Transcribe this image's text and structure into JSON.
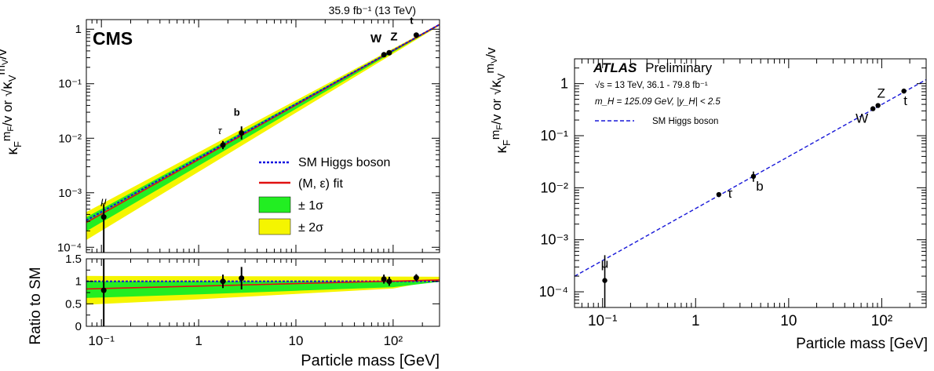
{
  "chart_data": [
    {
      "type": "scatter",
      "experiment": "CMS",
      "lumi": "35.9 fb⁻¹ (13 TeV)",
      "xlabel": "Particle mass [GeV]",
      "ylabel_main": "κ_F m_F/v or √κ_V m_V/v",
      "ylabel_ratio": "Ratio to SM",
      "xscale": "log",
      "yscale": "log",
      "xlim": [
        0.07,
        300
      ],
      "ylim": [
        8e-05,
        1.5
      ],
      "ratio_ylim": [
        0,
        1.5
      ],
      "xtick_labels": [
        "10⁻¹",
        "1",
        "10",
        "10²"
      ],
      "ytick_labels": [
        "10⁻⁴",
        "10⁻³",
        "10⁻²",
        "10⁻¹",
        "1"
      ],
      "ratio_ytick_labels": [
        "0",
        "0.5",
        "1",
        "1.5"
      ],
      "points": [
        {
          "label": "μ",
          "mass": 0.1057,
          "y": 0.00036,
          "err_lo": 0.00036,
          "err_hi": 0.00025,
          "ratio": 0.8,
          "ratio_err": 0.8
        },
        {
          "label": "τ",
          "mass": 1.777,
          "y": 0.0075,
          "err_lo": 0.0012,
          "err_hi": 0.0014,
          "ratio": 1.0,
          "ratio_err": 0.15
        },
        {
          "label": "b",
          "mass": 2.76,
          "y": 0.0125,
          "err_lo": 0.003,
          "err_hi": 0.004,
          "ratio": 1.07,
          "ratio_err": 0.25
        },
        {
          "label": "W",
          "mass": 80.4,
          "y": 0.34,
          "err_lo": 0.03,
          "err_hi": 0.03,
          "ratio": 1.05,
          "ratio_err": 0.1
        },
        {
          "label": "Z",
          "mass": 91.2,
          "y": 0.37,
          "err_lo": 0.03,
          "err_hi": 0.03,
          "ratio": 1.0,
          "ratio_err": 0.1
        },
        {
          "label": "t",
          "mass": 173.0,
          "y": 0.78,
          "err_lo": 0.07,
          "err_hi": 0.07,
          "ratio": 1.08,
          "ratio_err": 0.08
        }
      ],
      "legend": [
        {
          "label": "SM Higgs boson",
          "style": "dotted-line",
          "color": "#1010e0"
        },
        {
          "label": "(M, ε) fit",
          "style": "line",
          "color": "#e01010"
        },
        {
          "label": "± 1σ",
          "style": "box",
          "color": "#22ee22"
        },
        {
          "label": "± 2σ",
          "style": "box",
          "color": "#f5f500"
        }
      ],
      "legend_position": "lower-right",
      "grid": false
    },
    {
      "type": "scatter",
      "experiment": "ATLAS",
      "experiment_status": "Preliminary",
      "energy_text": "√s = 13 TeV, 36.1 - 79.8 fb⁻¹",
      "mass_text": "m_H = 125.09 GeV, |y_H| < 2.5",
      "xlabel": "Particle mass [GeV]",
      "ylabel": "κ_F m_F/v or √κ_V m_V/v",
      "xscale": "log",
      "yscale": "log",
      "xlim": [
        0.05,
        300
      ],
      "ylim": [
        5e-05,
        3
      ],
      "xtick_labels": [
        "10⁻¹",
        "1",
        "10",
        "10²"
      ],
      "ytick_labels": [
        "10⁻⁴",
        "10⁻³",
        "10⁻²",
        "10⁻¹",
        "1"
      ],
      "points": [
        {
          "label": "μ",
          "mass": 0.1057,
          "y": 0.000165,
          "err_lo": 0.000165,
          "err_hi": 0.00034
        },
        {
          "label": "τ",
          "mass": 1.777,
          "y": 0.0074,
          "err_lo": 0.0008,
          "err_hi": 0.0008
        },
        {
          "label": "b",
          "mass": 4.18,
          "y": 0.0165,
          "err_lo": 0.0035,
          "err_hi": 0.004
        },
        {
          "label": "W",
          "mass": 80.4,
          "y": 0.33,
          "err_lo": 0.02,
          "err_hi": 0.02
        },
        {
          "label": "Z",
          "mass": 91.2,
          "y": 0.38,
          "err_lo": 0.02,
          "err_hi": 0.02
        },
        {
          "label": "t",
          "mass": 173.0,
          "y": 0.72,
          "err_lo": 0.05,
          "err_hi": 0.05
        }
      ],
      "legend": [
        {
          "label": "SM Higgs boson",
          "style": "dashed-line",
          "color": "#1818d8"
        }
      ],
      "legend_position": "top-left",
      "grid": false
    }
  ]
}
